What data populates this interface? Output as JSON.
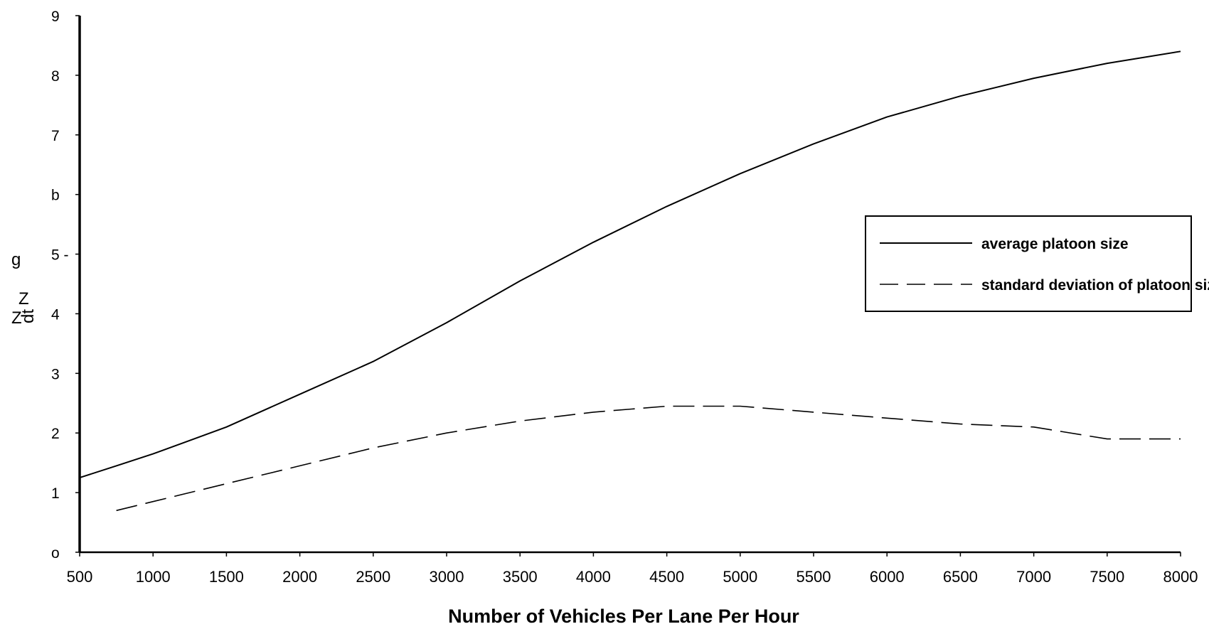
{
  "chart_data": {
    "type": "line",
    "title": "",
    "xlabel": "Number of Vehicles Per Lane Per Hour",
    "ylabel_fragments": [
      "g",
      "Z",
      "Z",
      "dt"
    ],
    "xlim": [
      500,
      8000
    ],
    "ylim": [
      0,
      9
    ],
    "x_ticks": [
      "500",
      "1000",
      "1500",
      "2000",
      "2500",
      "3000",
      "3500",
      "4000",
      "4500",
      "5000",
      "5500",
      "6000",
      "6500",
      "7000",
      "7500",
      "8000"
    ],
    "y_ticks": [
      "0",
      "1",
      "2",
      "3",
      "4",
      "5",
      "6",
      "7",
      "8",
      "9"
    ],
    "y_tick_display": [
      "o",
      "1",
      "2",
      "3",
      "4",
      "5 -",
      "b",
      "7",
      "8",
      "9"
    ],
    "grid": false,
    "legend_position": "right",
    "series": [
      {
        "name": "average platoon size",
        "style": "solid",
        "x": [
          500,
          750,
          1000,
          1500,
          2000,
          2500,
          3000,
          3500,
          4000,
          4500,
          5000,
          5500,
          6000,
          6500,
          7000,
          7500,
          8000
        ],
        "values": [
          1.25,
          1.45,
          1.65,
          2.1,
          2.65,
          3.2,
          3.85,
          4.55,
          5.2,
          5.8,
          6.35,
          6.85,
          7.3,
          7.65,
          7.95,
          8.2,
          8.4
        ]
      },
      {
        "name": "standard deviation of platoon size",
        "style": "dashed",
        "x": [
          750,
          1000,
          1500,
          2000,
          2500,
          3000,
          3500,
          4000,
          4500,
          5000,
          5500,
          6000,
          6500,
          7000,
          7500,
          8000
        ],
        "values": [
          0.7,
          0.85,
          1.15,
          1.45,
          1.75,
          2.0,
          2.2,
          2.35,
          2.45,
          2.45,
          2.35,
          2.25,
          2.15,
          2.1,
          1.9,
          1.9
        ]
      }
    ]
  },
  "legend": {
    "items": [
      {
        "label": "average platoon size",
        "style": "solid"
      },
      {
        "label": "standard deviation of platoon size",
        "style": "dashed"
      }
    ]
  },
  "colors": {
    "line": "#000000",
    "background": "#ffffff"
  }
}
